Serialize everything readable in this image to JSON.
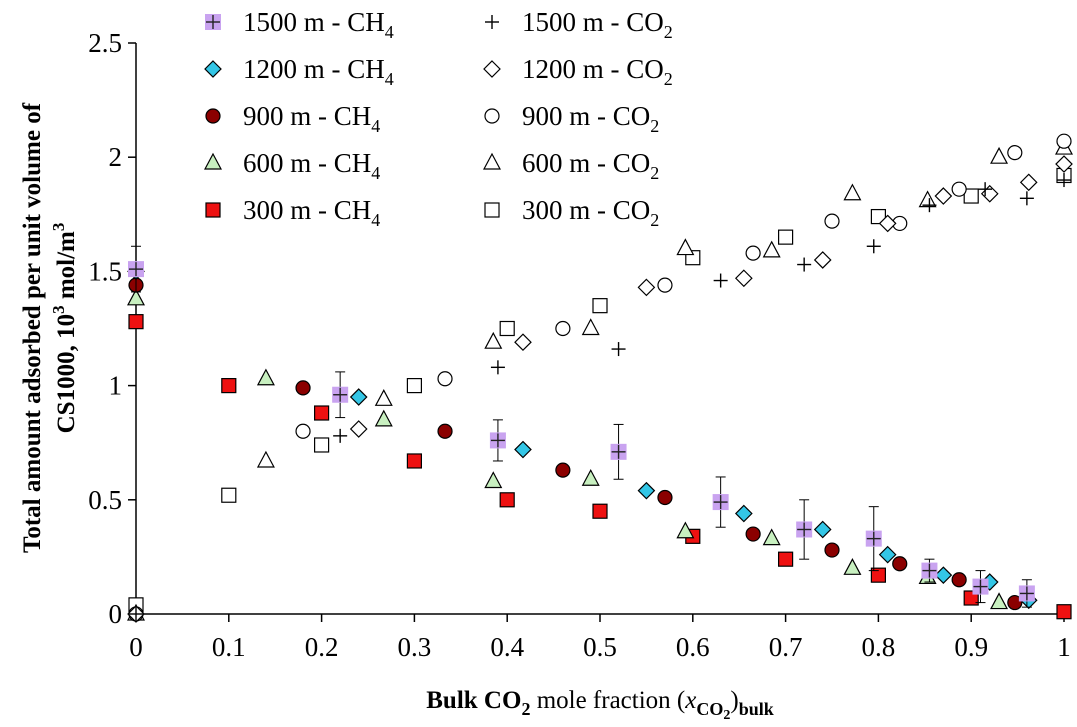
{
  "chart_data": {
    "type": "scatter",
    "xlabel": "Bulk CO2 mole fraction (xCO2)bulk",
    "ylabel": "Total amount adsorbed per unit volume of CS1000, 10^3 mol/m^3",
    "xlabel_parts": {
      "a": "Bulk CO",
      "sub1": "2",
      "b": " mole fraction (",
      "x": "x",
      "sub2": "CO",
      "sub2b": "2",
      "c": ")",
      "sub3": "bulk"
    },
    "ylabel_parts": {
      "line1": "Total amount adsorbed per unit volume of",
      "line2a": "CS1000, 10",
      "sup1": "3",
      "line2b": " mol/m",
      "sup2": "3"
    },
    "xlim": [
      0,
      1
    ],
    "ylim": [
      0,
      2.5
    ],
    "xticks": [
      "0",
      "0.1",
      "0.2",
      "0.3",
      "0.4",
      "0.5",
      "0.6",
      "0.7",
      "0.8",
      "0.9",
      "1"
    ],
    "yticks": [
      "0",
      "0.5",
      "1",
      "1.5",
      "2",
      "2.5"
    ],
    "grid": false,
    "legend_position": "top-left",
    "series": [
      {
        "name": "1500 m - CH4",
        "label": "1500 m - CH",
        "sub": "4",
        "marker": "crosssquare",
        "fill": "#c9a3f0",
        "stroke": "#c9a3f0",
        "x": [
          0,
          0.22,
          0.39,
          0.52,
          0.63,
          0.72,
          0.795,
          0.855,
          0.91,
          0.96
        ],
        "y": [
          1.51,
          0.96,
          0.76,
          0.71,
          0.49,
          0.37,
          0.33,
          0.19,
          0.12,
          0.09
        ],
        "err": [
          0.1,
          0.1,
          0.09,
          0.12,
          0.11,
          0.13,
          0.14,
          0.05,
          0.07,
          0.06
        ]
      },
      {
        "name": "1500 m - CO2",
        "label": "1500 m - CO",
        "sub": "2",
        "marker": "plus",
        "fill": "none",
        "stroke": "#000000",
        "x": [
          0,
          0.22,
          0.39,
          0.52,
          0.63,
          0.72,
          0.795,
          0.855,
          0.915,
          0.96,
          1.0
        ],
        "y": [
          0.0,
          0.78,
          1.08,
          1.16,
          1.46,
          1.53,
          1.61,
          1.79,
          1.86,
          1.82,
          1.9
        ]
      },
      {
        "name": "1200 m - CH4",
        "label": "1200 m - CH",
        "sub": "4",
        "marker": "diamond",
        "fill": "#33c6e6",
        "stroke": "#000000",
        "x": [
          0,
          0.24,
          0.417,
          0.55,
          0.655,
          0.74,
          0.81,
          0.87,
          0.92,
          0.962
        ],
        "y": [
          1.5,
          0.95,
          0.72,
          0.54,
          0.44,
          0.37,
          0.26,
          0.17,
          0.14,
          0.06
        ]
      },
      {
        "name": "1200 m - CO2",
        "label": "1200 m - CO",
        "sub": "2",
        "marker": "diamond",
        "fill": "#ffffff",
        "stroke": "#000000",
        "x": [
          0,
          0.24,
          0.417,
          0.55,
          0.655,
          0.74,
          0.81,
          0.87,
          0.92,
          0.962,
          1.0
        ],
        "y": [
          0.0,
          0.81,
          1.19,
          1.43,
          1.47,
          1.55,
          1.71,
          1.83,
          1.84,
          1.89,
          1.97
        ]
      },
      {
        "name": "900 m - CH4",
        "label": "900 m - CH",
        "sub": "4",
        "marker": "circle",
        "fill": "#8b0000",
        "stroke": "#000000",
        "x": [
          0,
          0.18,
          0.333,
          0.46,
          0.57,
          0.665,
          0.75,
          0.823,
          0.887,
          0.947
        ],
        "y": [
          1.44,
          0.99,
          0.8,
          0.63,
          0.51,
          0.35,
          0.28,
          0.22,
          0.15,
          0.05
        ]
      },
      {
        "name": "900 m - CO2",
        "label": "900 m - CO",
        "sub": "2",
        "marker": "circle",
        "fill": "#ffffff",
        "stroke": "#000000",
        "x": [
          0,
          0.18,
          0.333,
          0.46,
          0.57,
          0.665,
          0.75,
          0.823,
          0.887,
          0.947,
          1.0
        ],
        "y": [
          0.0,
          0.8,
          1.03,
          1.25,
          1.44,
          1.58,
          1.72,
          1.71,
          1.86,
          2.02,
          2.07
        ]
      },
      {
        "name": "600 m - CH4",
        "label": "600 m - CH",
        "sub": "4",
        "marker": "triangle",
        "fill": "#c8f0c0",
        "stroke": "#000000",
        "x": [
          0,
          0.14,
          0.267,
          0.385,
          0.49,
          0.592,
          0.685,
          0.772,
          0.853,
          0.93
        ],
        "y": [
          1.38,
          1.03,
          0.85,
          0.58,
          0.59,
          0.36,
          0.33,
          0.2,
          0.16,
          0.05
        ]
      },
      {
        "name": "600 m - CO2",
        "label": "600 m - CO",
        "sub": "2",
        "marker": "triangle",
        "fill": "#ffffff",
        "stroke": "#000000",
        "x": [
          0,
          0.14,
          0.267,
          0.385,
          0.49,
          0.592,
          0.685,
          0.772,
          0.853,
          0.93,
          1.0
        ],
        "y": [
          0.0,
          0.67,
          0.94,
          1.19,
          1.25,
          1.6,
          1.59,
          1.84,
          1.81,
          2.0,
          2.04
        ]
      },
      {
        "name": "300 m - CH4",
        "label": "300 m - CH",
        "sub": "4",
        "marker": "square",
        "fill": "#ee1111",
        "stroke": "#000000",
        "x": [
          0,
          0.1,
          0.2,
          0.3,
          0.4,
          0.5,
          0.6,
          0.7,
          0.8,
          0.9,
          1.0
        ],
        "y": [
          1.28,
          1.0,
          0.88,
          0.67,
          0.5,
          0.45,
          0.34,
          0.24,
          0.17,
          0.07,
          0.01
        ]
      },
      {
        "name": "300 m - CO2",
        "label": "300 m - CO",
        "sub": "2",
        "marker": "square",
        "fill": "#ffffff",
        "stroke": "#000000",
        "x": [
          0,
          0.1,
          0.2,
          0.3,
          0.4,
          0.5,
          0.6,
          0.7,
          0.8,
          0.9,
          1.0
        ],
        "y": [
          0.04,
          0.52,
          0.74,
          1.0,
          1.25,
          1.35,
          1.56,
          1.65,
          1.74,
          1.83,
          1.92
        ]
      }
    ]
  }
}
